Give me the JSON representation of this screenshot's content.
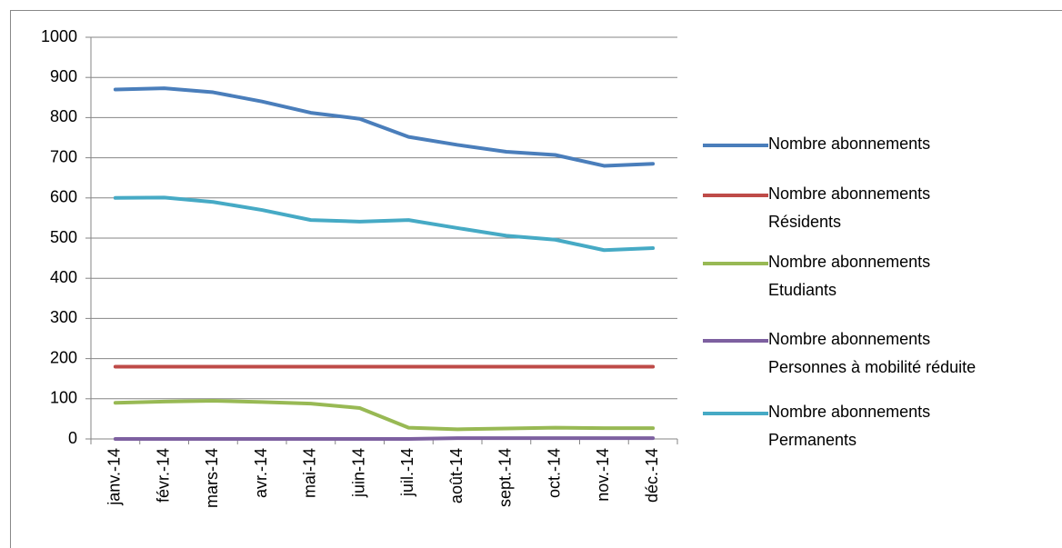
{
  "chart_data": {
    "type": "line",
    "categories": [
      "janv.-14",
      "févr.-14",
      "mars-14",
      "avr.-14",
      "mai-14",
      "juin-14",
      "juil.-14",
      "août-14",
      "sept.-14",
      "oct.-14",
      "nov.-14",
      "déc.-14"
    ],
    "series": [
      {
        "name": "Nombre abonnements",
        "color": "#4a7ebb",
        "values": [
          870,
          873,
          863,
          840,
          812,
          797,
          752,
          732,
          715,
          707,
          680,
          685
        ]
      },
      {
        "name": "Nombre abonnements\nRésidents",
        "color": "#be4b48",
        "values": [
          180,
          180,
          180,
          180,
          180,
          180,
          180,
          180,
          180,
          180,
          180,
          180
        ]
      },
      {
        "name": "Nombre abonnements\nEtudiants",
        "color": "#98b954",
        "values": [
          90,
          93,
          95,
          92,
          88,
          77,
          28,
          24,
          26,
          28,
          27,
          27
        ]
      },
      {
        "name": "Nombre abonnements\nPersonnes à mobilité réduite",
        "color": "#7d60a0",
        "values": [
          0,
          0,
          0,
          0,
          0,
          0,
          0,
          2,
          2,
          2,
          2,
          2
        ]
      },
      {
        "name": "Nombre abonnements\nPermanents",
        "color": "#46aac5",
        "values": [
          600,
          601,
          590,
          570,
          545,
          541,
          545,
          525,
          506,
          496,
          470,
          475
        ]
      }
    ],
    "ylim": [
      0,
      1000
    ],
    "yticks": [
      0,
      100,
      200,
      300,
      400,
      500,
      600,
      700,
      800,
      900,
      1000
    ],
    "grid": true,
    "legend": "right"
  }
}
